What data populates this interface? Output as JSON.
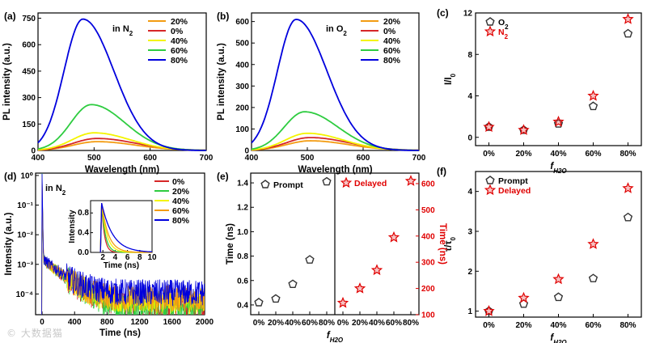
{
  "chart_data": [
    {
      "id": "a",
      "type": "line",
      "panel_label": "(a)",
      "annotation": "in N",
      "annotation_sub": "2",
      "xlabel": "Wavelength (nm)",
      "ylabel": "PL intensity (a.u.)",
      "xlim": [
        400,
        700
      ],
      "ylim": [
        0,
        780
      ],
      "xticks": [
        400,
        500,
        600,
        700
      ],
      "yticks": [
        0,
        150,
        300,
        450,
        600,
        750
      ],
      "legend_position": "top-right",
      "series": [
        {
          "name": "20%",
          "color": "#f39c12",
          "peak_x": 505,
          "peak_y": 50,
          "sigma": 60
        },
        {
          "name": "0%",
          "color": "#d62728",
          "peak_x": 505,
          "peak_y": 68,
          "sigma": 60
        },
        {
          "name": "40%",
          "color": "#f4f400",
          "peak_x": 500,
          "peak_y": 100,
          "sigma": 56
        },
        {
          "name": "60%",
          "color": "#2ecc40",
          "peak_x": 495,
          "peak_y": 260,
          "sigma": 52
        },
        {
          "name": "80%",
          "color": "#0000dd",
          "peak_x": 480,
          "peak_y": 745,
          "sigma": 48
        }
      ]
    },
    {
      "id": "b",
      "type": "line",
      "panel_label": "(b)",
      "annotation": "in O",
      "annotation_sub": "2",
      "xlabel": "Wavelength (nm)",
      "ylabel": "PL intensity (a.u.)",
      "xlim": [
        400,
        700
      ],
      "ylim": [
        0,
        640
      ],
      "xticks": [
        400,
        500,
        600,
        700
      ],
      "yticks": [
        0,
        100,
        200,
        300,
        400,
        500,
        600
      ],
      "legend_position": "top-right",
      "series": [
        {
          "name": "20%",
          "color": "#f39c12",
          "peak_x": 505,
          "peak_y": 45,
          "sigma": 60
        },
        {
          "name": "0%",
          "color": "#d62728",
          "peak_x": 505,
          "peak_y": 60,
          "sigma": 60
        },
        {
          "name": "40%",
          "color": "#f4f400",
          "peak_x": 500,
          "peak_y": 80,
          "sigma": 56
        },
        {
          "name": "60%",
          "color": "#2ecc40",
          "peak_x": 495,
          "peak_y": 180,
          "sigma": 52
        },
        {
          "name": "80%",
          "color": "#0000dd",
          "peak_x": 480,
          "peak_y": 610,
          "sigma": 48
        }
      ]
    },
    {
      "id": "c",
      "type": "scatter",
      "panel_label": "(c)",
      "xlabel": "f",
      "xlabel_sub": "H2O",
      "ylabel": "I/I",
      "ylabel_sub": "0",
      "categories": [
        "0%",
        "20%",
        "40%",
        "60%",
        "80%"
      ],
      "ylim": [
        -0.8,
        12
      ],
      "yticks": [
        0,
        4,
        8,
        12
      ],
      "legend_position": "top-left",
      "series": [
        {
          "name": "O",
          "name_sub": "2",
          "marker": "pentagon",
          "values": [
            1.0,
            0.7,
            1.3,
            3.0,
            10.0
          ]
        },
        {
          "name": "N",
          "name_sub": "2",
          "marker": "star",
          "values": [
            1.0,
            0.7,
            1.5,
            4.0,
            11.4
          ]
        }
      ]
    },
    {
      "id": "d",
      "type": "line",
      "panel_label": "(d)",
      "annotation": "in N",
      "annotation_sub": "2",
      "xlabel": "Time (ns)",
      "ylabel": "Intensity (a.u.)",
      "xlim": [
        -80,
        2000
      ],
      "xticks": [
        0,
        400,
        800,
        1200,
        1600,
        2000
      ],
      "ylog": true,
      "ylim": [
        2e-05,
        1.2
      ],
      "yticks": [
        "10⁰",
        "10⁻¹",
        "10⁻²",
        "10⁻³",
        "10⁻⁴"
      ],
      "legend_position": "top-right",
      "series": [
        {
          "name": "0%",
          "color": "#d62728",
          "floor": 4.5e-05
        },
        {
          "name": "20%",
          "color": "#2ecc40",
          "floor": 3.5e-05
        },
        {
          "name": "40%",
          "color": "#f4f400",
          "floor": 6e-05
        },
        {
          "name": "60%",
          "color": "#f39c12",
          "floor": 7e-05
        },
        {
          "name": "80%",
          "color": "#0000dd",
          "floor": 0.00011
        }
      ],
      "inset": {
        "xlabel": "Time (ns)",
        "ylabel": "Intensity",
        "xlim": [
          0,
          10
        ],
        "ylim": [
          0,
          1.05
        ],
        "xticks": [
          2,
          4,
          6,
          8,
          10
        ],
        "yticks": [
          "0.0",
          "0.4",
          "0.8"
        ],
        "taus": [
          0.45,
          0.6,
          0.85,
          1.1,
          1.8
        ]
      }
    },
    {
      "id": "e",
      "type": "scatter",
      "panel_label": "(e)",
      "xlabel": "f",
      "xlabel_sub": "H2O",
      "left": {
        "ylabel": "Time (ns)",
        "ylim": [
          0.32,
          1.48
        ],
        "yticks": [
          "0.4",
          "0.6",
          "0.8",
          "1.0",
          "1.2",
          "1.4"
        ],
        "legend": "Prompt",
        "categories": [
          "0%",
          "20%",
          "40%",
          "60%",
          "80%"
        ],
        "values": [
          0.42,
          0.45,
          0.57,
          0.77,
          1.41
        ]
      },
      "right": {
        "ylabel": "Time (ns)",
        "ylim": [
          100,
          640
        ],
        "yticks": [
          "100",
          "200",
          "300",
          "400",
          "500",
          "600"
        ],
        "legend": "Delayed",
        "categories": [
          "0%",
          "20%",
          "40%",
          "60%",
          "80%"
        ],
        "values": [
          145,
          200,
          270,
          395,
          610
        ]
      }
    },
    {
      "id": "f",
      "type": "scatter",
      "panel_label": "(f)",
      "xlabel": "f",
      "xlabel_sub": "H2O",
      "ylabel": "τ/τ",
      "ylabel_sub": "0",
      "categories": [
        "0%",
        "20%",
        "40%",
        "60%",
        "80%"
      ],
      "ylim": [
        0.85,
        4.5
      ],
      "yticks": [
        "1",
        "2",
        "3",
        "4"
      ],
      "legend_position": "top-left",
      "series": [
        {
          "name": "Prompt",
          "marker": "pentagon",
          "values": [
            1.0,
            1.18,
            1.35,
            1.82,
            3.35
          ]
        },
        {
          "name": "Delayed",
          "marker": "star",
          "values": [
            1.0,
            1.33,
            1.8,
            2.68,
            4.08
          ]
        }
      ]
    }
  ],
  "watermark": "© 大数据猫"
}
